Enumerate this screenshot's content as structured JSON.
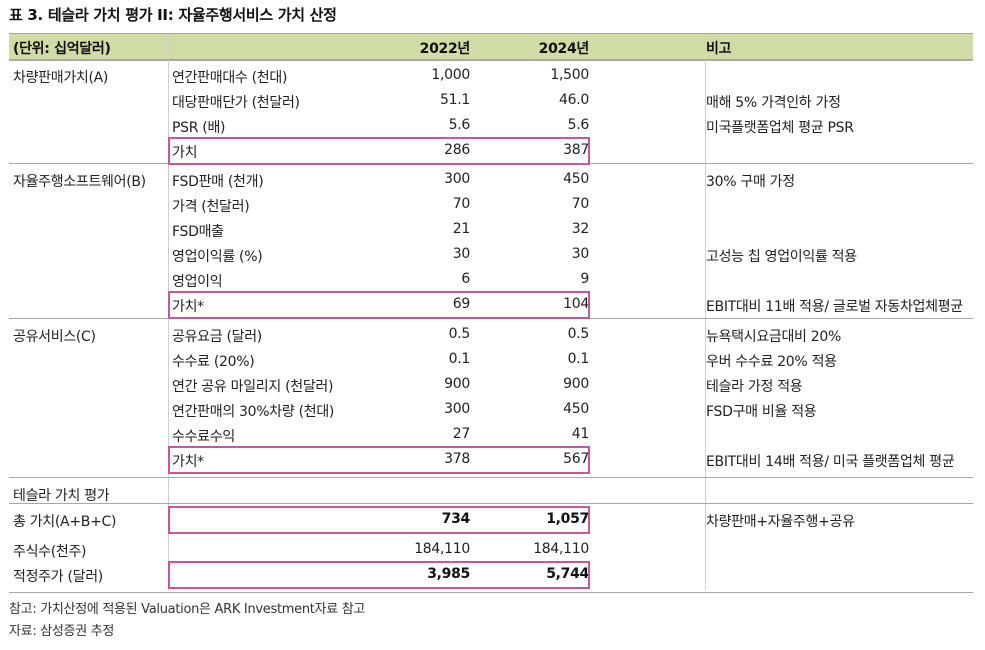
{
  "title": "표 3. 테슬라 가치 평가 II: 자율주행서비스 가치 산정",
  "header": {
    "unit": "(단위: 십억달러)",
    "col1": "2022년",
    "col2": "2024년",
    "note": "비고"
  },
  "rows": [
    {
      "cat": "차량판매가치(A)",
      "item": "연간판매대수 (천대)",
      "v1": "1,000",
      "v2": "1,500",
      "note": ""
    },
    {
      "cat": "",
      "item": "대당판매단가 (천달러)",
      "v1": "51.1",
      "v2": "46.0",
      "note": "매해 5% 가격인하 가정"
    },
    {
      "cat": "",
      "item": "PSR (배)",
      "v1": "5.6",
      "v2": "5.6",
      "note": "미국플랫폼업체 평균 PSR"
    },
    {
      "cat": "",
      "item": "가치",
      "v1": "286",
      "v2": "387",
      "note": ""
    },
    {
      "cat": "자율주행소프트웨어(B)",
      "item": "FSD판매 (천개)",
      "v1": "300",
      "v2": "450",
      "note": "30% 구매 가정"
    },
    {
      "cat": "",
      "item": "가격 (천달러)",
      "v1": "70",
      "v2": "70",
      "note": ""
    },
    {
      "cat": "",
      "item": "FSD매출",
      "v1": "21",
      "v2": "32",
      "note": ""
    },
    {
      "cat": "",
      "item": "영업이익률 (%)",
      "v1": "30",
      "v2": "30",
      "note": "고성능 칩 영업이익률 적용"
    },
    {
      "cat": "",
      "item": "영업이익",
      "v1": "6",
      "v2": "9",
      "note": ""
    },
    {
      "cat": "",
      "item": "가치*",
      "v1": "69",
      "v2": "104",
      "note": "EBIT대비 11배 적용/ 글로벌 자동차업체평균"
    },
    {
      "cat": "공유서비스(C)",
      "item": "공유요금 (달러)",
      "v1": "0.5",
      "v2": "0.5",
      "note": "뉴욕택시요금대비 20%"
    },
    {
      "cat": "",
      "item": "수수료 (20%)",
      "v1": "0.1",
      "v2": "0.1",
      "note": "우버 수수료 20% 적용"
    },
    {
      "cat": "",
      "item": "연간 공유 마일리지 (천달러)",
      "v1": "900",
      "v2": "900",
      "note": "테슬라 가정 적용"
    },
    {
      "cat": "",
      "item": "연간판매의 30%차량 (천대)",
      "v1": "300",
      "v2": "450",
      "note": "FSD구매 비율 적용"
    },
    {
      "cat": "",
      "item": "수수료수익",
      "v1": "27",
      "v2": "41",
      "note": ""
    },
    {
      "cat": "",
      "item": "가치*",
      "v1": "378",
      "v2": "567",
      "note": "EBIT대비 14배 적용/ 미국 플랫폼업체 평균"
    },
    {
      "cat": "테슬라 가치 평가",
      "item": "",
      "v1": "",
      "v2": "",
      "note": ""
    },
    {
      "cat": "총 가치(A+B+C)",
      "item": "",
      "v1": "734",
      "v2": "1,057",
      "note": "차량판매+자율주행+공유"
    },
    {
      "cat": "주식수(천주)",
      "item": "",
      "v1": "184,110",
      "v2": "184,110",
      "note": ""
    },
    {
      "cat": "적정주가 (달러)",
      "item": "",
      "v1": "3,985",
      "v2": "5,744",
      "note": ""
    }
  ],
  "footnotes": [
    "참고: 가치산정에 적용된 Valuation은 ARK Investment자료 참고",
    "자료: 삼성증권 추정"
  ],
  "colors": {
    "header_bg": "#cfdca5",
    "highlight": "#c9559a"
  }
}
